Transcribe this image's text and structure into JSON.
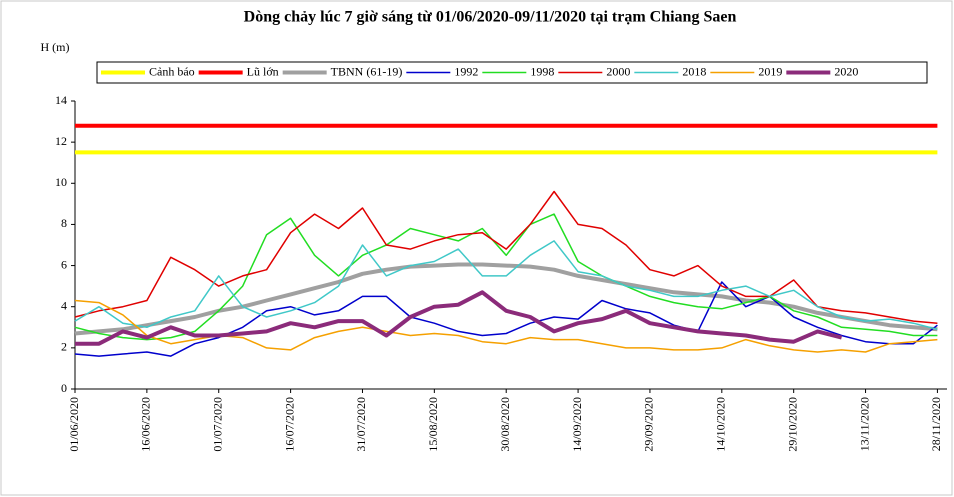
{
  "chart_data": {
    "type": "line",
    "title": "Dòng chảy lúc 7 giờ sáng từ 01/06/2020-09/11/2020 tại trạm Chiang Saen",
    "y_label": "H (m)",
    "x": [
      "01/06/2020",
      "06/06/2020",
      "11/06/2020",
      "16/06/2020",
      "21/06/2020",
      "26/06/2020",
      "01/07/2020",
      "06/07/2020",
      "11/07/2020",
      "16/07/2020",
      "21/07/2020",
      "26/07/2020",
      "31/07/2020",
      "05/08/2020",
      "10/08/2020",
      "15/08/2020",
      "20/08/2020",
      "25/08/2020",
      "30/08/2020",
      "04/09/2020",
      "09/09/2020",
      "14/09/2020",
      "19/09/2020",
      "24/09/2020",
      "29/09/2020",
      "04/10/2020",
      "09/10/2020",
      "14/10/2020",
      "19/10/2020",
      "24/10/2020",
      "29/10/2020",
      "03/11/2020",
      "08/11/2020",
      "13/11/2020",
      "18/11/2020",
      "23/11/2020",
      "28/11/2020"
    ],
    "xlim": [
      "01/06/2020",
      "30/11/2020"
    ],
    "xticks": [
      "01/06/2020",
      "16/06/2020",
      "01/07/2020",
      "16/07/2020",
      "31/07/2020",
      "15/08/2020",
      "30/08/2020",
      "14/09/2020",
      "29/09/2020",
      "14/10/2020",
      "29/10/2020",
      "13/11/2020",
      "28/11/2020"
    ],
    "ylim": [
      0,
      14
    ],
    "yticks": [
      0,
      2,
      4,
      6,
      8,
      10,
      12,
      14
    ],
    "grid": false,
    "series": [
      {
        "name": "Cảnh báo",
        "color": "#ffff00",
        "values": [
          11.5,
          11.5,
          11.5,
          11.5,
          11.5,
          11.5,
          11.5,
          11.5,
          11.5,
          11.5,
          11.5,
          11.5,
          11.5,
          11.5,
          11.5,
          11.5,
          11.5,
          11.5,
          11.5,
          11.5,
          11.5,
          11.5,
          11.5,
          11.5,
          11.5,
          11.5,
          11.5,
          11.5,
          11.5,
          11.5,
          11.5,
          11.5,
          11.5,
          11.5,
          11.5,
          11.5,
          11.5
        ]
      },
      {
        "name": "Lũ lớn",
        "color": "#ff0000",
        "values": [
          12.8,
          12.8,
          12.8,
          12.8,
          12.8,
          12.8,
          12.8,
          12.8,
          12.8,
          12.8,
          12.8,
          12.8,
          12.8,
          12.8,
          12.8,
          12.8,
          12.8,
          12.8,
          12.8,
          12.8,
          12.8,
          12.8,
          12.8,
          12.8,
          12.8,
          12.8,
          12.8,
          12.8,
          12.8,
          12.8,
          12.8,
          12.8,
          12.8,
          12.8,
          12.8,
          12.8,
          12.8
        ]
      },
      {
        "name": "TBNN (61-19)",
        "color": "#a0a0a0",
        "values": [
          2.7,
          2.8,
          2.9,
          3.1,
          3.3,
          3.5,
          3.8,
          4.0,
          4.3,
          4.6,
          4.9,
          5.2,
          5.6,
          5.8,
          5.95,
          6.0,
          6.05,
          6.05,
          6.0,
          5.95,
          5.8,
          5.5,
          5.3,
          5.1,
          4.9,
          4.7,
          4.6,
          4.5,
          4.3,
          4.2,
          4.0,
          3.7,
          3.5,
          3.3,
          3.1,
          3.0,
          2.9
        ]
      },
      {
        "name": "1992",
        "color": "#0000cc",
        "values": [
          1.7,
          1.6,
          1.7,
          1.8,
          1.6,
          2.2,
          2.5,
          3.0,
          3.8,
          4.0,
          3.6,
          3.8,
          4.5,
          4.5,
          3.5,
          3.2,
          2.8,
          2.6,
          2.7,
          3.2,
          3.5,
          3.4,
          4.3,
          3.9,
          3.7,
          3.1,
          2.8,
          5.2,
          4.0,
          4.5,
          3.5,
          3.0,
          2.6,
          2.3,
          2.2,
          2.2,
          3.1
        ]
      },
      {
        "name": "1998",
        "color": "#22dd22",
        "values": [
          3.0,
          2.7,
          2.5,
          2.4,
          2.5,
          2.8,
          3.8,
          5.0,
          7.5,
          8.3,
          6.5,
          5.5,
          6.5,
          7.0,
          7.8,
          7.5,
          7.2,
          7.8,
          6.5,
          8.0,
          8.5,
          6.2,
          5.5,
          5.0,
          4.5,
          4.2,
          4.0,
          3.9,
          4.2,
          4.5,
          3.8,
          3.5,
          3.0,
          2.9,
          2.8,
          2.6,
          2.6
        ]
      },
      {
        "name": "2000",
        "color": "#e00000",
        "values": [
          3.5,
          3.8,
          4.0,
          4.3,
          6.4,
          5.8,
          5.0,
          5.5,
          5.8,
          7.6,
          8.5,
          7.8,
          8.8,
          7.0,
          6.8,
          7.2,
          7.5,
          7.6,
          6.8,
          8.0,
          9.6,
          8.0,
          7.8,
          7.0,
          5.8,
          5.5,
          6.0,
          5.0,
          4.5,
          4.5,
          5.3,
          4.0,
          3.8,
          3.7,
          3.5,
          3.3,
          3.2
        ]
      },
      {
        "name": "2018",
        "color": "#40c8c8",
        "values": [
          3.3,
          4.0,
          3.2,
          3.0,
          3.5,
          3.8,
          5.5,
          4.0,
          3.5,
          3.8,
          4.2,
          5.0,
          7.0,
          5.5,
          6.0,
          6.2,
          6.8,
          5.5,
          5.5,
          6.5,
          7.2,
          5.7,
          5.5,
          5.0,
          4.8,
          4.5,
          4.5,
          4.8,
          5.0,
          4.5,
          4.8,
          4.0,
          3.5,
          3.3,
          3.4,
          3.2,
          2.9
        ]
      },
      {
        "name": "2019",
        "color": "#f5a000",
        "values": [
          4.3,
          4.2,
          3.6,
          2.6,
          2.2,
          2.4,
          2.6,
          2.5,
          2.0,
          1.9,
          2.5,
          2.8,
          3.0,
          2.8,
          2.6,
          2.7,
          2.6,
          2.3,
          2.2,
          2.5,
          2.4,
          2.4,
          2.2,
          2.0,
          2.0,
          1.9,
          1.9,
          2.0,
          2.4,
          2.1,
          1.9,
          1.8,
          1.9,
          1.8,
          2.2,
          2.3,
          2.4
        ]
      },
      {
        "name": "2020",
        "color": "#8b2b7a",
        "values": [
          2.2,
          2.2,
          2.8,
          2.5,
          3.0,
          2.6,
          2.6,
          2.7,
          2.8,
          3.2,
          3.0,
          3.3,
          3.3,
          2.6,
          3.5,
          4.0,
          4.1,
          4.7,
          3.8,
          3.5,
          2.8,
          3.2,
          3.4,
          3.8,
          3.2,
          3.0,
          2.8,
          2.7,
          2.6,
          2.4,
          2.3,
          2.8,
          2.5,
          null,
          null,
          null,
          null
        ]
      }
    ]
  }
}
